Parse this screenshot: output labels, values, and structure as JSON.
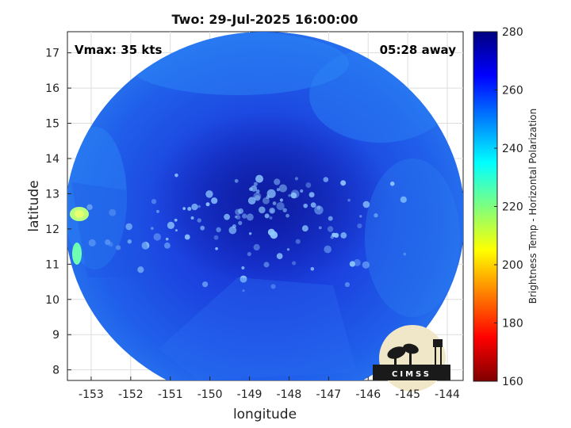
{
  "title": "Two: 29-Jul-2025 16:00:00",
  "annotations": {
    "vmax": "Vmax: 35 kts",
    "time_away": "05:28 away"
  },
  "logo": {
    "text": "CIMSS"
  },
  "colors": {
    "background": "#ffffff",
    "low_tb_blue": "#1a2fd9",
    "high_tb_navy": "#0a1a6a",
    "warm_cyan": "#2aa8ff",
    "logo_bg": "#f0e6c8"
  },
  "chart_data": {
    "type": "heatmap",
    "xlabel": "longitude",
    "ylabel": "latitude",
    "xlim": [
      -153.6,
      -143.6
    ],
    "ylim": [
      7.7,
      17.6
    ],
    "x_ticks": [
      "-153",
      "-152",
      "-151",
      "-150",
      "-149",
      "-148",
      "-147",
      "-146",
      "-145",
      "-144"
    ],
    "y_ticks": [
      "8",
      "9",
      "10",
      "11",
      "12",
      "13",
      "14",
      "15",
      "16",
      "17"
    ],
    "grid": true,
    "colorbar": {
      "label": "Brightness Temp - Horizontal Polarization",
      "range": [
        160,
        280
      ],
      "ticks": [
        "160",
        "180",
        "200",
        "220",
        "240",
        "260",
        "280"
      ],
      "colormap": "jet"
    }
  }
}
